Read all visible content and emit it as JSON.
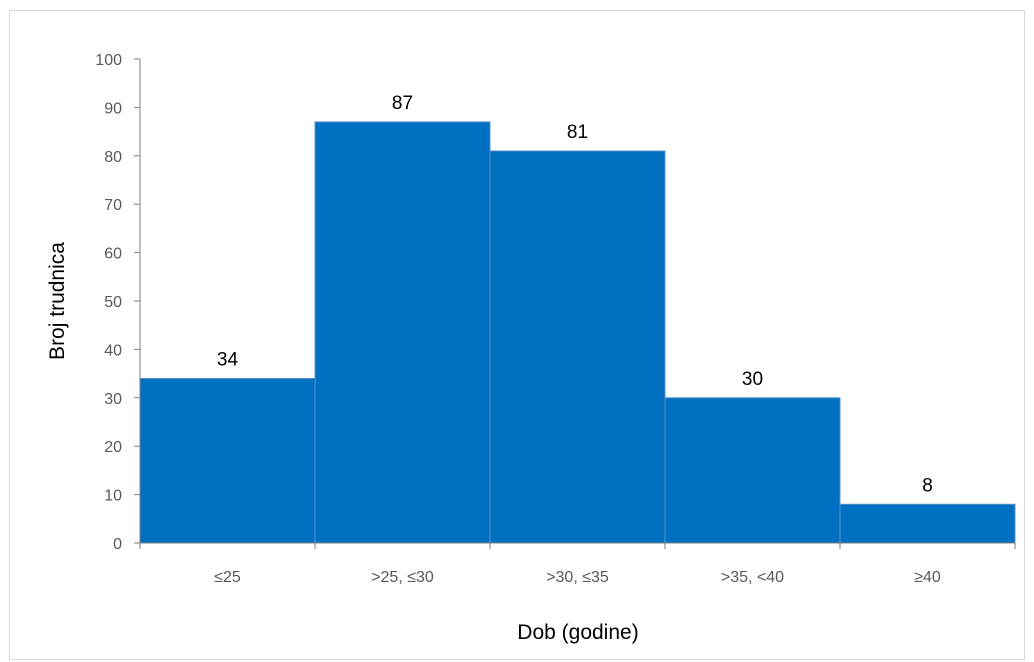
{
  "chart_data": {
    "type": "bar",
    "title": "",
    "xlabel": "Dob (godine)",
    "ylabel": "Broj trudnica",
    "categories": [
      "≤25",
      ">25, ≤30",
      ">30, ≤35",
      ">35, <40",
      "≥40"
    ],
    "values": [
      34,
      87,
      81,
      30,
      8
    ],
    "ylim": [
      0,
      100
    ],
    "yticks": [
      0,
      10,
      20,
      30,
      40,
      50,
      60,
      70,
      80,
      90,
      100
    ],
    "grid": false,
    "legend": "none",
    "data_labels": true,
    "bar_gap": "none",
    "colors": {
      "bar": "#0070c0",
      "bar_edge": "#5b8fd0",
      "axis": "#7f7f7f",
      "tick_text": "#595959",
      "frame": "#d9d9d9"
    }
  }
}
